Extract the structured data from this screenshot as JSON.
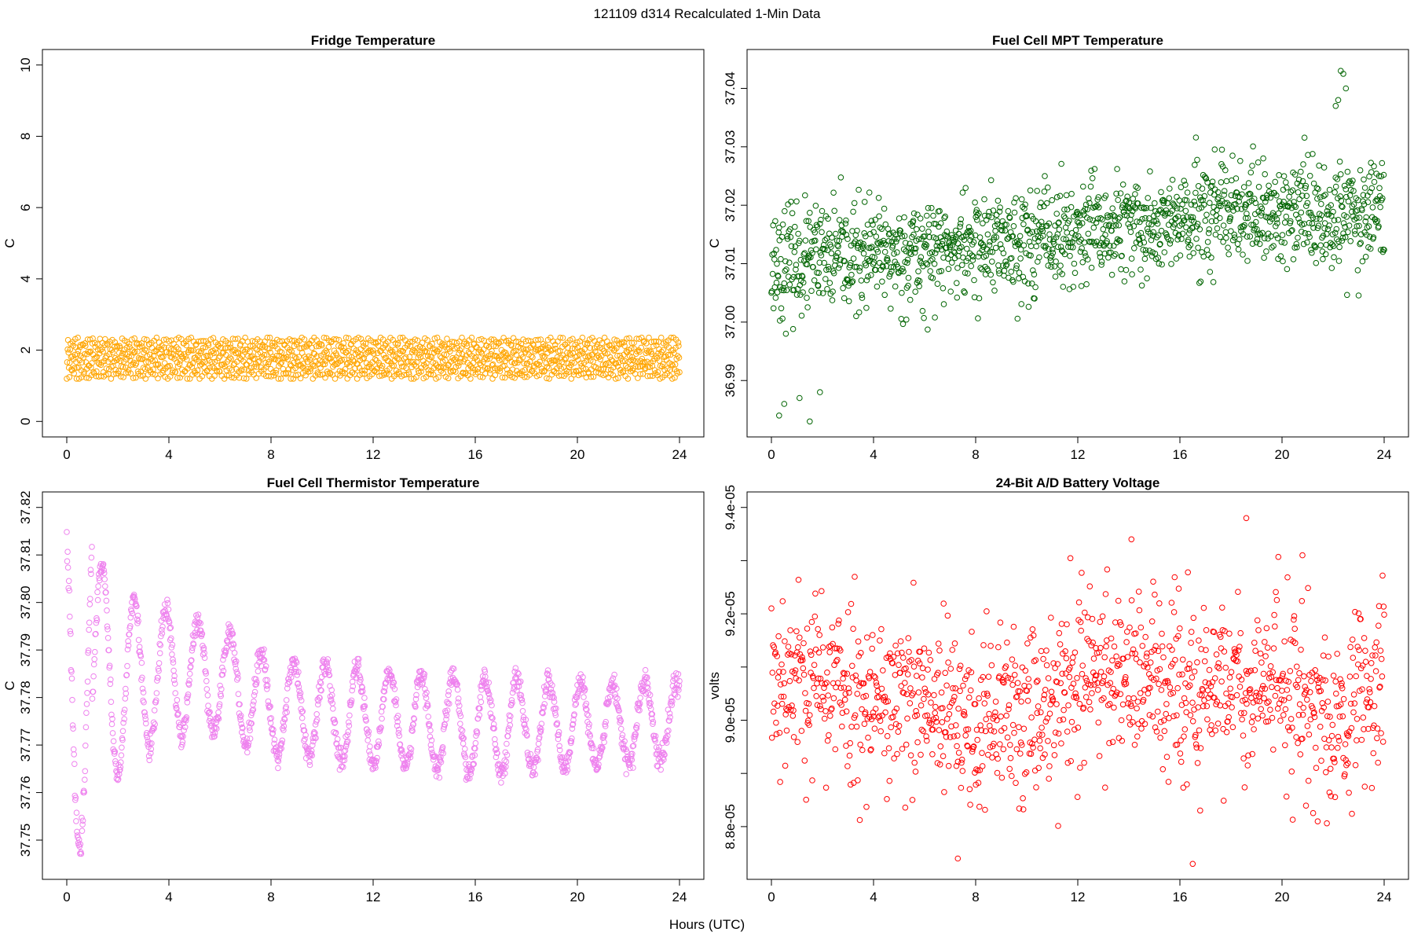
{
  "figure": {
    "suptitle": "121109   d314   Recalculated 1-Min Data",
    "xlabel": "Hours (UTC)"
  },
  "chart_data": [
    {
      "type": "scatter",
      "title": "Fridge Temperature",
      "ylabel": "C",
      "xlabel": "",
      "xlim": [
        0,
        24
      ],
      "ylim": [
        0,
        10
      ],
      "xticks": [
        "0",
        "4",
        "8",
        "12",
        "16",
        "20",
        "24"
      ],
      "xtick_values": [
        0,
        4,
        8,
        12,
        16,
        20,
        24
      ],
      "yticks": [
        "0",
        "2",
        "4",
        "6",
        "8",
        "10"
      ],
      "ytick_values": [
        0,
        2,
        4,
        6,
        8,
        10
      ],
      "color": "#FFA500",
      "generator": "band",
      "x_range": [
        0,
        24
      ],
      "y_band": [
        1.2,
        2.35
      ],
      "n_points": 1440,
      "seed": 11
    },
    {
      "type": "scatter",
      "title": "Fuel Cell MPT Temperature",
      "ylabel": "C",
      "xlabel": "",
      "xlim": [
        0,
        24
      ],
      "ylim": [
        36.983,
        37.044
      ],
      "xticks": [
        "0",
        "4",
        "8",
        "12",
        "16",
        "20",
        "24"
      ],
      "xtick_values": [
        0,
        4,
        8,
        12,
        16,
        20,
        24
      ],
      "yticks": [
        "36.99",
        "37.00",
        "37.01",
        "37.02",
        "37.03",
        "37.04"
      ],
      "ytick_values": [
        36.99,
        37.0,
        37.01,
        37.02,
        37.03,
        37.04
      ],
      "color": "#006400",
      "generator": "noisy_trend",
      "x_range": [
        0,
        24
      ],
      "trend": [
        [
          0,
          37.01
        ],
        [
          6,
          37.012
        ],
        [
          12,
          37.015
        ],
        [
          18,
          37.018
        ],
        [
          24,
          37.019
        ]
      ],
      "noise_sd": 0.0045,
      "n_points": 1440,
      "seed": 23,
      "extra_points": [
        [
          0.3,
          36.984
        ],
        [
          0.5,
          36.986
        ],
        [
          1.1,
          36.987
        ],
        [
          1.5,
          36.983
        ],
        [
          1.9,
          36.988
        ],
        [
          22.3,
          37.043
        ],
        [
          22.4,
          37.0425
        ],
        [
          22.5,
          37.04
        ],
        [
          22.1,
          37.037
        ],
        [
          22.2,
          37.038
        ]
      ]
    },
    {
      "type": "scatter",
      "title": "Fuel Cell Thermistor Temperature",
      "ylabel": "C",
      "xlabel": "",
      "xlim": [
        0,
        24
      ],
      "ylim": [
        37.745,
        37.82
      ],
      "xticks": [
        "0",
        "4",
        "8",
        "12",
        "16",
        "20",
        "24"
      ],
      "xtick_values": [
        0,
        4,
        8,
        12,
        16,
        20,
        24
      ],
      "yticks": [
        "37.75",
        "37.76",
        "37.77",
        "37.78",
        "37.79",
        "37.80",
        "37.81",
        "37.82"
      ],
      "ytick_values": [
        37.75,
        37.76,
        37.77,
        37.78,
        37.79,
        37.8,
        37.81,
        37.82
      ],
      "color": "#EE82EE",
      "generator": "oscillation",
      "x_range": [
        0,
        24
      ],
      "baseline": [
        [
          0,
          37.79
        ],
        [
          0.3,
          37.79
        ],
        [
          2,
          37.783
        ],
        [
          4,
          37.785
        ],
        [
          6,
          37.784
        ],
        [
          8,
          37.778
        ],
        [
          12,
          37.776
        ],
        [
          16,
          37.774
        ],
        [
          20,
          37.774
        ],
        [
          24,
          37.775
        ]
      ],
      "amplitude": [
        [
          0,
          0.028
        ],
        [
          1.5,
          0.022
        ],
        [
          3,
          0.015
        ],
        [
          5,
          0.012
        ],
        [
          8,
          0.01
        ],
        [
          16,
          0.01
        ],
        [
          24,
          0.008
        ]
      ],
      "period_hours": 1.25,
      "noise_sd": 0.0012,
      "n_points": 1440,
      "seed": 37
    },
    {
      "type": "scatter",
      "title": "24-Bit A/D Battery Voltage",
      "ylabel": "volts",
      "xlabel": "",
      "xlim": [
        0,
        24
      ],
      "ylim": [
        8.73e-05,
        9.4e-05
      ],
      "xticks": [
        "0",
        "4",
        "8",
        "12",
        "16",
        "20",
        "24"
      ],
      "xtick_values": [
        0,
        4,
        8,
        12,
        16,
        20,
        24
      ],
      "yticks": [
        "8.8e-05",
        "9.0e-05",
        "9.2e-05",
        "9.4e-05"
      ],
      "ytick_values": [
        8.8e-05,
        9e-05,
        9.2e-05,
        9.4e-05
      ],
      "minor_ytick_values": [
        8.9e-05,
        9.1e-05,
        9.3e-05
      ],
      "color": "#FF0000",
      "generator": "noisy_trend",
      "x_range": [
        0,
        24
      ],
      "trend": [
        [
          0,
          9.09e-05
        ],
        [
          3,
          9.06e-05
        ],
        [
          6,
          9.02e-05
        ],
        [
          8,
          8.99e-05
        ],
        [
          10,
          9.02e-05
        ],
        [
          12,
          9.08e-05
        ],
        [
          14,
          9.1e-05
        ],
        [
          16,
          9.04e-05
        ],
        [
          18,
          9.07e-05
        ],
        [
          20,
          9.07e-05
        ],
        [
          22,
          9e-05
        ],
        [
          24,
          9.08e-05
        ]
      ],
      "noise_sd": 8.5e-07,
      "n_points": 1200,
      "seed": 53,
      "extra_points": [
        [
          18.6,
          9.38e-05
        ],
        [
          14.1,
          9.34e-05
        ],
        [
          7.3,
          8.74e-05
        ],
        [
          16.5,
          8.73e-05
        ],
        [
          20.8,
          9.31e-05
        ]
      ]
    }
  ]
}
